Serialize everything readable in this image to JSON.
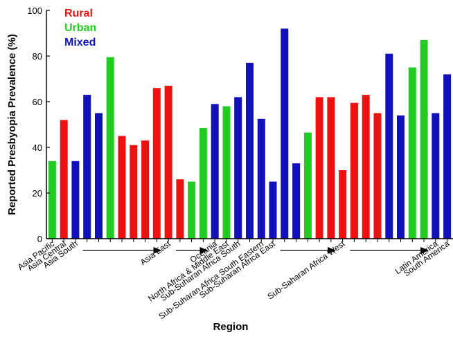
{
  "chart_data": {
    "type": "bar",
    "xlabel": "Region",
    "ylabel": "Reported Presbyopia Prevalence (%)",
    "ylim": [
      0,
      100
    ],
    "yticks": [
      0,
      20,
      40,
      60,
      80,
      100
    ],
    "grid": false,
    "legend": {
      "placement": "top-left",
      "entries": [
        {
          "name": "Rural",
          "color": "#ee1111"
        },
        {
          "name": "Urban",
          "color": "#22cc22"
        },
        {
          "name": "Mixed",
          "color": "#1111bb"
        }
      ]
    },
    "bars": [
      {
        "setting": "Urban",
        "value": 34
      },
      {
        "setting": "Rural",
        "value": 52
      },
      {
        "setting": "Mixed",
        "value": 34
      },
      {
        "setting": "Mixed",
        "value": 63
      },
      {
        "setting": "Mixed",
        "value": 55
      },
      {
        "setting": "Urban",
        "value": 79.5
      },
      {
        "setting": "Rural",
        "value": 45
      },
      {
        "setting": "Rural",
        "value": 41
      },
      {
        "setting": "Rural",
        "value": 43
      },
      {
        "setting": "Rural",
        "value": 66
      },
      {
        "setting": "Rural",
        "value": 67
      },
      {
        "setting": "Rural",
        "value": 26
      },
      {
        "setting": "Urban",
        "value": 25
      },
      {
        "setting": "Urban",
        "value": 48.5
      },
      {
        "setting": "Mixed",
        "value": 59
      },
      {
        "setting": "Urban",
        "value": 58
      },
      {
        "setting": "Mixed",
        "value": 62
      },
      {
        "setting": "Mixed",
        "value": 77
      },
      {
        "setting": "Mixed",
        "value": 52.5
      },
      {
        "setting": "Mixed",
        "value": 25
      },
      {
        "setting": "Mixed",
        "value": 92
      },
      {
        "setting": "Mixed",
        "value": 33
      },
      {
        "setting": "Urban",
        "value": 46.5
      },
      {
        "setting": "Rural",
        "value": 62
      },
      {
        "setting": "Rural",
        "value": 62
      },
      {
        "setting": "Rural",
        "value": 30
      },
      {
        "setting": "Rural",
        "value": 59.5
      },
      {
        "setting": "Rural",
        "value": 63
      },
      {
        "setting": "Rural",
        "value": 55
      },
      {
        "setting": "Mixed",
        "value": 81
      },
      {
        "setting": "Mixed",
        "value": 54
      },
      {
        "setting": "Urban",
        "value": 75
      },
      {
        "setting": "Urban",
        "value": 87
      },
      {
        "setting": "Mixed",
        "value": 55
      },
      {
        "setting": "Mixed",
        "value": 72
      }
    ],
    "region_labels": [
      {
        "text": "Asia Pacific",
        "at_bar": 0
      },
      {
        "text": "Asia Central",
        "at_bar": 1
      },
      {
        "text": "Asia South",
        "at_bar": 2
      },
      {
        "text": "Asia East",
        "at_bar": 10
      },
      {
        "text": "Oceania",
        "at_bar": 14
      },
      {
        "text": "North Africa & Middle East",
        "at_bar": 15
      },
      {
        "text": "Sub-Suharan Africa South",
        "at_bar": 16
      },
      {
        "text": "Sub-Suharan Africa South Eastern",
        "at_bar": 18
      },
      {
        "text": "Sub-Suharan Africa East",
        "at_bar": 19
      },
      {
        "text": "Sub-Saharan Africa West",
        "at_bar": 25
      },
      {
        "text": "Latin America",
        "at_bar": 33
      },
      {
        "text": "South America",
        "at_bar": 34
      }
    ],
    "span_arrows": [
      {
        "from_bar": 3,
        "to_bar": 9
      },
      {
        "from_bar": 11,
        "to_bar": 13
      },
      {
        "from_bar": 20,
        "to_bar": 24
      },
      {
        "from_bar": 26,
        "to_bar": 32
      }
    ]
  }
}
